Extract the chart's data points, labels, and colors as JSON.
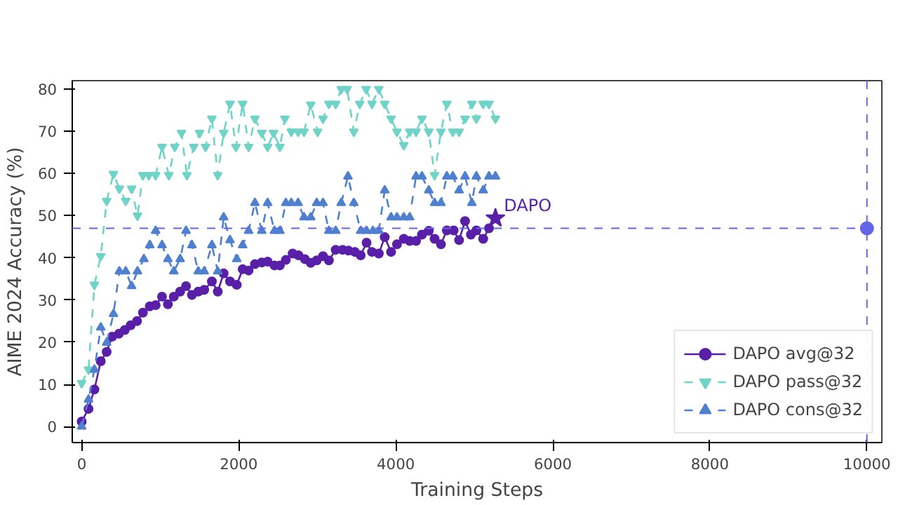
{
  "chart_data": {
    "type": "line",
    "xlabel": "Training Steps",
    "ylabel": "AIME 2024 Accuracy (%)",
    "xlim": [
      -120,
      10190
    ],
    "ylim": [
      -3.8,
      82
    ],
    "xticks": [
      0,
      2000,
      4000,
      6000,
      8000,
      10000
    ],
    "yticks": [
      0,
      10,
      20,
      30,
      40,
      50,
      60,
      70,
      80
    ],
    "grid": false,
    "legend": "bottom right",
    "series": [
      {
        "name": "DAPO avg@32",
        "color": "#5a1fa8",
        "marker": "circle",
        "line_style": "solid",
        "x": [
          0,
          87,
          162,
          243,
          318,
          387,
          474,
          549,
          624,
          705,
          780,
          867,
          942,
          1023,
          1098,
          1173,
          1254,
          1329,
          1404,
          1485,
          1560,
          1658,
          1733,
          1808,
          1889,
          1975,
          2050,
          2126,
          2206,
          2293,
          2368,
          2455,
          2524,
          2600,
          2686,
          2761,
          2842,
          2917,
          2993,
          3073,
          3148,
          3235,
          3322,
          3397,
          3478,
          3553,
          3628,
          3697,
          3784,
          3859,
          3940,
          4015,
          4102,
          4177,
          4258,
          4333,
          4420,
          4494,
          4575,
          4650,
          4737,
          4806,
          4882,
          4957,
          5026,
          5113,
          5187,
          5269
        ],
        "values": [
          1.2,
          4.2,
          8.8,
          15.5,
          17.7,
          21.3,
          22,
          22.9,
          24,
          25,
          27,
          28.5,
          28.8,
          30.8,
          29,
          30.8,
          32,
          33.3,
          31.2,
          32,
          32.4,
          34.4,
          32,
          36.3,
          34.4,
          33.6,
          37.3,
          37,
          38.5,
          38.9,
          39.1,
          38.2,
          38.2,
          39.5,
          41,
          40.6,
          39.7,
          38.8,
          39.4,
          40.4,
          39.4,
          41.9,
          41.9,
          41.7,
          41.4,
          40.6,
          43.6,
          41.4,
          41,
          44.9,
          41.4,
          43.2,
          44.5,
          44,
          44,
          45.5,
          46.4,
          44.5,
          43.2,
          46.5,
          46.5,
          44.2,
          48.7,
          45.5,
          46.5,
          44.5,
          47,
          49.4
        ]
      },
      {
        "name": "DAPO pass@32",
        "color": "#6fd3c8",
        "marker": "triangle_down",
        "line_style": "dashed",
        "x": [
          0,
          87,
          162,
          243,
          318,
          405,
          480,
          561,
          636,
          711,
          780,
          855,
          942,
          1023,
          1110,
          1185,
          1271,
          1340,
          1427,
          1502,
          1577,
          1658,
          1733,
          1808,
          1889,
          1964,
          2050,
          2126,
          2206,
          2293,
          2368,
          2443,
          2524,
          2588,
          2669,
          2756,
          2831,
          2917,
          3004,
          3073,
          3148,
          3235,
          3305,
          3380,
          3466,
          3541,
          3622,
          3697,
          3784,
          3859,
          3940,
          4015,
          4102,
          4177,
          4258,
          4333,
          4420,
          4494,
          4575,
          4650,
          4726,
          4806,
          4882,
          4969,
          5026,
          5113,
          5187,
          5269
        ],
        "values": [
          10.3,
          13.5,
          33.6,
          40.4,
          53.5,
          59.9,
          56.4,
          53.5,
          56.4,
          50,
          59.6,
          59.6,
          59.6,
          66.3,
          59.6,
          66.3,
          69.6,
          59.6,
          66.3,
          69.6,
          66.3,
          73,
          59.6,
          69.6,
          76.5,
          66.3,
          76.5,
          66.3,
          73,
          69.6,
          66.3,
          69.6,
          66.3,
          73,
          69.9,
          69.9,
          69.9,
          76.3,
          69.9,
          73,
          76.5,
          76.5,
          80,
          80,
          69.9,
          76.5,
          80,
          76.5,
          80,
          76.5,
          73,
          69.9,
          66.7,
          69.9,
          69.9,
          73,
          69.9,
          59.6,
          69.9,
          76.5,
          69.9,
          69.9,
          73,
          76.5,
          73,
          76.5,
          76.5,
          73
        ]
      },
      {
        "name": "DAPO cons@32",
        "color": "#4f80d0",
        "marker": "triangle",
        "line_style": "dashed",
        "x": [
          0,
          87,
          162,
          243,
          318,
          405,
          480,
          561,
          636,
          711,
          792,
          867,
          942,
          1023,
          1098,
          1173,
          1254,
          1329,
          1404,
          1485,
          1560,
          1658,
          1733,
          1808,
          1889,
          1975,
          2050,
          2126,
          2206,
          2293,
          2368,
          2455,
          2524,
          2600,
          2669,
          2756,
          2831,
          2917,
          2993,
          3073,
          3148,
          3235,
          3305,
          3391,
          3466,
          3553,
          3628,
          3709,
          3784,
          3859,
          3940,
          4015,
          4102,
          4177,
          4258,
          4333,
          4420,
          4494,
          4575,
          4650,
          4726,
          4806,
          4882,
          4969,
          5026,
          5113,
          5187,
          5269
        ],
        "values": [
          0,
          6.4,
          13.5,
          23.5,
          19.9,
          26.7,
          36.8,
          36.8,
          33.3,
          36.8,
          39.7,
          43,
          46.4,
          43,
          39.7,
          36.8,
          39.7,
          46.4,
          43,
          36.8,
          36.8,
          43,
          36.8,
          49.6,
          44.2,
          39.7,
          43,
          46.4,
          53,
          46.4,
          53,
          46.4,
          46.4,
          53,
          53,
          53,
          49.6,
          49.6,
          53,
          53,
          46.4,
          46.4,
          53,
          59.3,
          53,
          46.4,
          46.4,
          46.4,
          46.4,
          56,
          49.6,
          49.6,
          49.6,
          49.6,
          59.3,
          59.3,
          56,
          53,
          53,
          59.3,
          59.3,
          56,
          59.3,
          53,
          59.3,
          56,
          59.3,
          59.3
        ]
      },
      {
        "type": "scatter",
        "color": "#5a1fa8",
        "marker": "star",
        "x": [
          5269
        ],
        "values": [
          49.4
        ]
      },
      {
        "type": "scatter",
        "color": "#6464e6",
        "marker": "circle",
        "x": [
          10000
        ],
        "values": [
          47
        ]
      }
    ],
    "ref_lines": [
      {
        "axis": "y",
        "value": 47,
        "color": "#6464e6",
        "line_style": "dashed"
      },
      {
        "axis": "x",
        "value": 10000,
        "color": "#6464e6",
        "line_style": "dashed"
      }
    ],
    "annotations": [
      {
        "text": "DAPO",
        "x": 5269,
        "y": 49.4
      }
    ]
  }
}
